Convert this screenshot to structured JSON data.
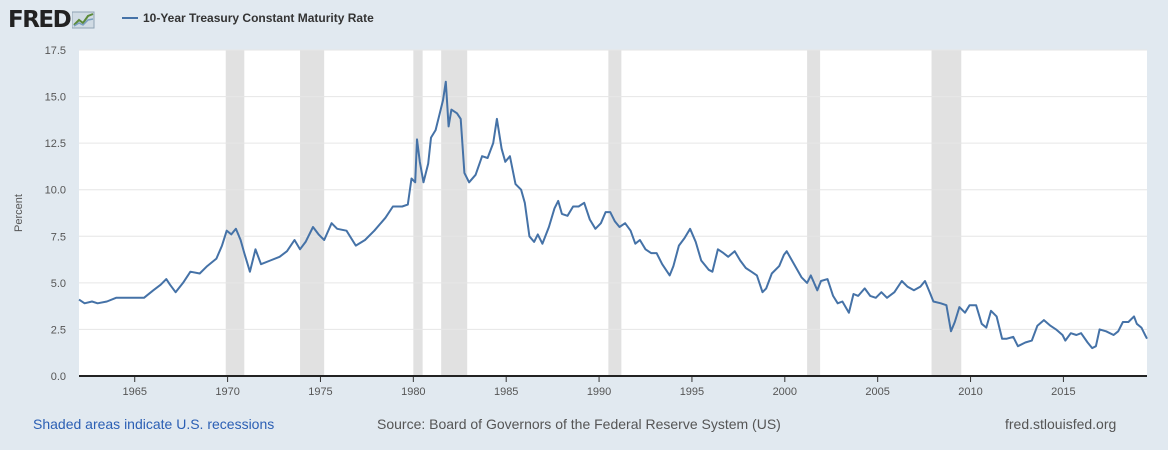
{
  "logo": {
    "text": "FRED"
  },
  "footer": {
    "recessions_note": "Shaded areas indicate U.S. recessions",
    "source": "Source: Board of Governors of the Federal Reserve System (US)",
    "site": "fred.stlouisfed.org"
  },
  "colors": {
    "background": "#e1e9f0",
    "plot_bg": "#ffffff",
    "series": "#4572a7",
    "recession": "#e1e1e1",
    "link": "#2b5fb4"
  },
  "chart_data": {
    "type": "line",
    "title": "",
    "xlabel": "",
    "ylabel": "Percent",
    "xlim": [
      1962.0,
      2019.5
    ],
    "ylim": [
      0,
      17.5
    ],
    "yticks": [
      0,
      2.5,
      5,
      7.5,
      10,
      12.5,
      15,
      17.5
    ],
    "ytick_labels": [
      "0.0",
      "2.5",
      "5.0",
      "7.5",
      "10.0",
      "12.5",
      "15.0",
      "17.5"
    ],
    "xticks": [
      1965,
      1970,
      1975,
      1980,
      1985,
      1990,
      1995,
      2000,
      2005,
      2010,
      2015
    ],
    "xtick_labels": [
      "1965",
      "1970",
      "1975",
      "1980",
      "1985",
      "1990",
      "1995",
      "2000",
      "2005",
      "2010",
      "2015"
    ],
    "grid": "horizontal",
    "recessions": [
      [
        1969.9,
        1970.9
      ],
      [
        1973.9,
        1975.2
      ],
      [
        1980.0,
        1980.5
      ],
      [
        1981.5,
        1982.9
      ],
      [
        1990.5,
        1991.2
      ],
      [
        2001.2,
        2001.9
      ],
      [
        2007.9,
        2009.5
      ]
    ],
    "series": [
      {
        "name": "10-Year Treasury Constant Maturity Rate",
        "points": [
          [
            1962.0,
            4.1
          ],
          [
            1962.3,
            3.9
          ],
          [
            1962.7,
            4.0
          ],
          [
            1963.0,
            3.9
          ],
          [
            1963.5,
            4.0
          ],
          [
            1964.0,
            4.2
          ],
          [
            1964.5,
            4.2
          ],
          [
            1965.0,
            4.2
          ],
          [
            1965.5,
            4.2
          ],
          [
            1966.0,
            4.6
          ],
          [
            1966.4,
            4.9
          ],
          [
            1966.7,
            5.2
          ],
          [
            1966.9,
            4.9
          ],
          [
            1967.2,
            4.5
          ],
          [
            1967.6,
            5.0
          ],
          [
            1968.0,
            5.6
          ],
          [
            1968.5,
            5.5
          ],
          [
            1968.9,
            5.9
          ],
          [
            1969.4,
            6.3
          ],
          [
            1969.7,
            7.0
          ],
          [
            1969.95,
            7.8
          ],
          [
            1970.2,
            7.6
          ],
          [
            1970.45,
            7.9
          ],
          [
            1970.7,
            7.3
          ],
          [
            1970.9,
            6.6
          ],
          [
            1971.2,
            5.6
          ],
          [
            1971.5,
            6.8
          ],
          [
            1971.8,
            6.0
          ],
          [
            1972.3,
            6.2
          ],
          [
            1972.8,
            6.4
          ],
          [
            1973.2,
            6.7
          ],
          [
            1973.6,
            7.3
          ],
          [
            1973.9,
            6.8
          ],
          [
            1974.2,
            7.2
          ],
          [
            1974.6,
            8.0
          ],
          [
            1974.9,
            7.6
          ],
          [
            1975.2,
            7.3
          ],
          [
            1975.6,
            8.2
          ],
          [
            1975.9,
            7.9
          ],
          [
            1976.4,
            7.8
          ],
          [
            1976.9,
            7.0
          ],
          [
            1977.4,
            7.3
          ],
          [
            1977.9,
            7.8
          ],
          [
            1978.5,
            8.5
          ],
          [
            1978.9,
            9.1
          ],
          [
            1979.4,
            9.1
          ],
          [
            1979.7,
            9.2
          ],
          [
            1979.9,
            10.6
          ],
          [
            1980.1,
            10.4
          ],
          [
            1980.2,
            12.7
          ],
          [
            1980.35,
            11.5
          ],
          [
            1980.55,
            10.4
          ],
          [
            1980.8,
            11.4
          ],
          [
            1980.95,
            12.8
          ],
          [
            1981.2,
            13.2
          ],
          [
            1981.4,
            14.0
          ],
          [
            1981.6,
            14.8
          ],
          [
            1981.75,
            15.8
          ],
          [
            1981.9,
            13.4
          ],
          [
            1982.05,
            14.3
          ],
          [
            1982.35,
            14.1
          ],
          [
            1982.55,
            13.8
          ],
          [
            1982.75,
            10.9
          ],
          [
            1983.0,
            10.4
          ],
          [
            1983.35,
            10.8
          ],
          [
            1983.7,
            11.8
          ],
          [
            1984.0,
            11.7
          ],
          [
            1984.3,
            12.5
          ],
          [
            1984.5,
            13.8
          ],
          [
            1984.75,
            12.2
          ],
          [
            1984.95,
            11.5
          ],
          [
            1985.2,
            11.8
          ],
          [
            1985.5,
            10.3
          ],
          [
            1985.8,
            10.0
          ],
          [
            1986.0,
            9.3
          ],
          [
            1986.25,
            7.5
          ],
          [
            1986.5,
            7.2
          ],
          [
            1986.7,
            7.6
          ],
          [
            1986.95,
            7.1
          ],
          [
            1987.3,
            8.0
          ],
          [
            1987.6,
            9.0
          ],
          [
            1987.8,
            9.4
          ],
          [
            1988.0,
            8.7
          ],
          [
            1988.3,
            8.6
          ],
          [
            1988.6,
            9.1
          ],
          [
            1988.9,
            9.1
          ],
          [
            1989.2,
            9.3
          ],
          [
            1989.5,
            8.4
          ],
          [
            1989.8,
            7.9
          ],
          [
            1990.1,
            8.2
          ],
          [
            1990.35,
            8.8
          ],
          [
            1990.6,
            8.8
          ],
          [
            1990.85,
            8.3
          ],
          [
            1991.1,
            8.0
          ],
          [
            1991.4,
            8.2
          ],
          [
            1991.7,
            7.8
          ],
          [
            1991.95,
            7.1
          ],
          [
            1992.2,
            7.3
          ],
          [
            1992.5,
            6.8
          ],
          [
            1992.8,
            6.6
          ],
          [
            1993.1,
            6.6
          ],
          [
            1993.4,
            6.0
          ],
          [
            1993.8,
            5.4
          ],
          [
            1994.0,
            5.9
          ],
          [
            1994.3,
            7.0
          ],
          [
            1994.6,
            7.4
          ],
          [
            1994.9,
            7.9
          ],
          [
            1995.2,
            7.2
          ],
          [
            1995.5,
            6.2
          ],
          [
            1995.9,
            5.7
          ],
          [
            1996.1,
            5.6
          ],
          [
            1996.4,
            6.8
          ],
          [
            1996.7,
            6.6
          ],
          [
            1996.95,
            6.4
          ],
          [
            1997.3,
            6.7
          ],
          [
            1997.6,
            6.2
          ],
          [
            1997.9,
            5.8
          ],
          [
            1998.2,
            5.6
          ],
          [
            1998.5,
            5.4
          ],
          [
            1998.8,
            4.5
          ],
          [
            1999.0,
            4.7
          ],
          [
            1999.3,
            5.5
          ],
          [
            1999.7,
            5.9
          ],
          [
            1999.95,
            6.5
          ],
          [
            2000.1,
            6.7
          ],
          [
            2000.5,
            6.0
          ],
          [
            2000.9,
            5.3
          ],
          [
            2001.2,
            5.0
          ],
          [
            2001.4,
            5.4
          ],
          [
            2001.75,
            4.6
          ],
          [
            2001.95,
            5.1
          ],
          [
            2002.3,
            5.2
          ],
          [
            2002.6,
            4.3
          ],
          [
            2002.85,
            3.9
          ],
          [
            2003.1,
            4.0
          ],
          [
            2003.45,
            3.4
          ],
          [
            2003.7,
            4.4
          ],
          [
            2003.95,
            4.3
          ],
          [
            2004.3,
            4.7
          ],
          [
            2004.6,
            4.3
          ],
          [
            2004.9,
            4.2
          ],
          [
            2005.2,
            4.5
          ],
          [
            2005.5,
            4.2
          ],
          [
            2005.9,
            4.5
          ],
          [
            2006.3,
            5.1
          ],
          [
            2006.6,
            4.8
          ],
          [
            2006.95,
            4.6
          ],
          [
            2007.3,
            4.8
          ],
          [
            2007.55,
            5.1
          ],
          [
            2007.8,
            4.5
          ],
          [
            2008.0,
            4.0
          ],
          [
            2008.4,
            3.9
          ],
          [
            2008.7,
            3.8
          ],
          [
            2008.95,
            2.4
          ],
          [
            2009.15,
            2.9
          ],
          [
            2009.4,
            3.7
          ],
          [
            2009.7,
            3.4
          ],
          [
            2009.95,
            3.8
          ],
          [
            2010.3,
            3.8
          ],
          [
            2010.6,
            2.8
          ],
          [
            2010.85,
            2.6
          ],
          [
            2011.1,
            3.5
          ],
          [
            2011.4,
            3.2
          ],
          [
            2011.7,
            2.0
          ],
          [
            2011.95,
            2.0
          ],
          [
            2012.3,
            2.1
          ],
          [
            2012.55,
            1.6
          ],
          [
            2012.95,
            1.8
          ],
          [
            2013.3,
            1.9
          ],
          [
            2013.6,
            2.7
          ],
          [
            2013.95,
            3.0
          ],
          [
            2014.3,
            2.7
          ],
          [
            2014.6,
            2.5
          ],
          [
            2014.95,
            2.2
          ],
          [
            2015.1,
            1.9
          ],
          [
            2015.4,
            2.3
          ],
          [
            2015.7,
            2.2
          ],
          [
            2015.95,
            2.3
          ],
          [
            2016.3,
            1.8
          ],
          [
            2016.55,
            1.5
          ],
          [
            2016.75,
            1.6
          ],
          [
            2016.95,
            2.5
          ],
          [
            2017.3,
            2.4
          ],
          [
            2017.7,
            2.2
          ],
          [
            2017.95,
            2.4
          ],
          [
            2018.2,
            2.9
          ],
          [
            2018.5,
            2.9
          ],
          [
            2018.8,
            3.2
          ],
          [
            2018.95,
            2.8
          ],
          [
            2019.2,
            2.6
          ],
          [
            2019.4,
            2.2
          ],
          [
            2019.5,
            2.0
          ]
        ]
      }
    ]
  }
}
